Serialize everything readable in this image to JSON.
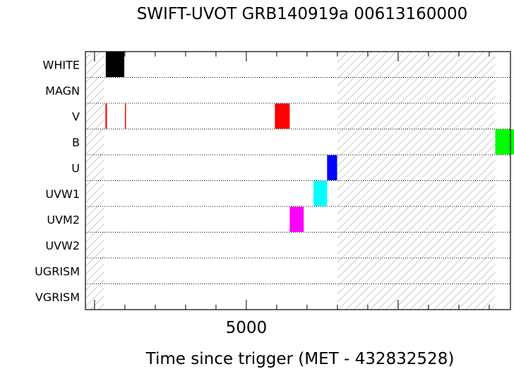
{
  "chart_data": {
    "type": "timeline",
    "title": "SWIFT-UVOT GRB140919a 00613160000",
    "xlabel": "Time since trigger (MET - 432832528)",
    "ylabel": "",
    "x_tick_labels": [
      {
        "value": 5000,
        "label": "5000"
      }
    ],
    "xlim": [
      -300,
      13700
    ],
    "filters": [
      "WHITE",
      "MAGN",
      "V",
      "B",
      "U",
      "UVW1",
      "UVM2",
      "UVW2",
      "UGRISM",
      "VGRISM"
    ],
    "gaps": [
      {
        "start": -300,
        "end": 310
      },
      {
        "start": 8000,
        "end": 13200
      }
    ],
    "exposures": [
      {
        "filter": "WHITE",
        "start": 370,
        "end": 980,
        "color": "#000000",
        "style": "fill"
      },
      {
        "filter": "V",
        "start": 360,
        "end": 410,
        "color": "#ff0000",
        "style": "fill"
      },
      {
        "filter": "V",
        "start": 1000,
        "end": 1020,
        "color": "#ff0000",
        "style": "fill"
      },
      {
        "filter": "V",
        "start": 5940,
        "end": 6430,
        "color": "#ff0000",
        "style": "fill"
      },
      {
        "filter": "B",
        "start": 13200,
        "end": 13970,
        "color": "#00ff00",
        "style": "fill"
      },
      {
        "filter": "U",
        "start": 7660,
        "end": 7990,
        "color": "#0000ff",
        "style": "fill"
      },
      {
        "filter": "UVW1",
        "start": 7210,
        "end": 7660,
        "color": "#00ffff",
        "style": "fill"
      },
      {
        "filter": "UVM2",
        "start": 6430,
        "end": 6890,
        "color": "#ff00ff",
        "style": "fill"
      }
    ],
    "grid": true
  }
}
